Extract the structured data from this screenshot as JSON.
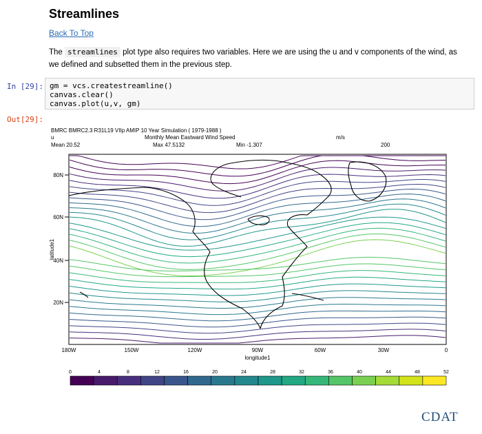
{
  "heading": "Streamlines",
  "back_link": "Back To Top",
  "paragraph": {
    "before": "The ",
    "code": "streamlines",
    "after": " plot type also requires two variables. Here we are using the u and v components of the wind, as we defined and subsetted them in the previous step."
  },
  "cell": {
    "in_prompt": "In [29]:",
    "out_prompt": "Out[29]:",
    "lines": [
      "gm = vcs.createstreamline()",
      "canvas.clear()",
      "canvas.plot(u,v, gm)"
    ]
  },
  "plot": {
    "header_line1": "BMRC BMRC2.3 R31L19 VIIp AMIP 10 Year Simulation ( 1979-1988 )",
    "var_name": "u",
    "long_name": "Monthly Mean Eastward Wind Speed",
    "units": "m/s",
    "mean": "Mean 20.52",
    "max": "Max 47.5132",
    "min": "Min -1.307",
    "level": "200",
    "xlabel": "longitude1",
    "ylabel": "latitude1",
    "y_ticks": [
      "80N",
      "60N",
      "40N",
      "20N"
    ],
    "x_ticks": [
      "180W",
      "150W",
      "120W",
      "90W",
      "60W",
      "30W",
      "0"
    ],
    "colorbar_ticks": [
      "0",
      "4",
      "8",
      "12",
      "16",
      "20",
      "24",
      "28",
      "32",
      "36",
      "40",
      "44",
      "48",
      "52"
    ],
    "colorbar_colors": [
      "#440154",
      "#481a6c",
      "#472f7d",
      "#414487",
      "#39568c",
      "#31688e",
      "#2a788e",
      "#23888e",
      "#1f988b",
      "#22a884",
      "#35b779",
      "#54c568",
      "#7ad151",
      "#a5db36",
      "#d2e21b",
      "#fde725"
    ]
  },
  "logo": "CDAT"
}
